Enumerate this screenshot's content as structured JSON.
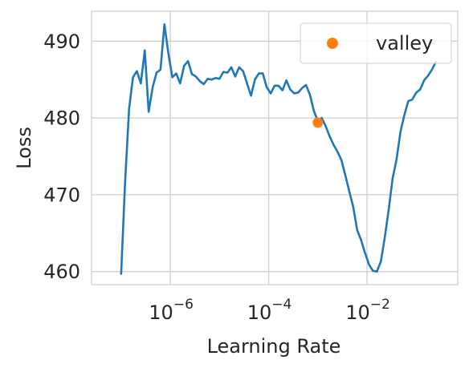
{
  "chart_data": {
    "type": "line",
    "xlabel": "Learning Rate",
    "ylabel": "Loss",
    "x_scale": "log",
    "xlim": [
      2.5e-08,
      0.7
    ],
    "ylim": [
      458.3,
      493.9
    ],
    "x_ticks": [
      {
        "value": 1e-06,
        "base": "10",
        "exp": "−6"
      },
      {
        "value": 0.0001,
        "base": "10",
        "exp": "−4"
      },
      {
        "value": 0.01,
        "base": "10",
        "exp": "−2"
      }
    ],
    "y_ticks": [
      {
        "value": 460,
        "label": "460"
      },
      {
        "value": 470,
        "label": "470"
      },
      {
        "value": 480,
        "label": "480"
      },
      {
        "value": 490,
        "label": "490"
      }
    ],
    "grid": true,
    "legend_position": "top-right",
    "legend": [
      {
        "label": "valley",
        "color": "#ff7f0e"
      }
    ],
    "colors": {
      "line": "#1f77b4",
      "valley": "#ff7f0e",
      "grid": "#cccccc",
      "frame": "#cccccc"
    },
    "series": [
      {
        "points": [
          [
            1e-07,
            459.7
          ],
          [
            1.2e-07,
            471.5
          ],
          [
            1.45e-07,
            481.2
          ],
          [
            1.74e-07,
            485.3
          ],
          [
            2.09e-07,
            486.1
          ],
          [
            2.51e-07,
            484.5
          ],
          [
            3.02e-07,
            488.8
          ],
          [
            3.63e-07,
            480.8
          ],
          [
            4.37e-07,
            484.0
          ],
          [
            5.25e-07,
            485.9
          ],
          [
            6.31e-07,
            486.3
          ],
          [
            7.59e-07,
            492.2
          ],
          [
            9.12e-07,
            488.4
          ],
          [
            1.1e-06,
            485.3
          ],
          [
            1.32e-06,
            485.8
          ],
          [
            1.58e-06,
            484.5
          ],
          [
            1.91e-06,
            486.8
          ],
          [
            2.29e-06,
            487.4
          ],
          [
            2.75e-06,
            485.7
          ],
          [
            3.31e-06,
            485.4
          ],
          [
            3.98e-06,
            484.8
          ],
          [
            4.79e-06,
            484.4
          ],
          [
            5.75e-06,
            485.1
          ],
          [
            6.92e-06,
            485.0
          ],
          [
            8.32e-06,
            485.2
          ],
          [
            1e-05,
            485.1
          ],
          [
            1.2e-05,
            486.0
          ],
          [
            1.45e-05,
            485.9
          ],
          [
            1.74e-05,
            486.6
          ],
          [
            2.09e-05,
            485.4
          ],
          [
            2.51e-05,
            486.6
          ],
          [
            3.02e-05,
            486.1
          ],
          [
            3.63e-05,
            484.5
          ],
          [
            4.37e-05,
            482.9
          ],
          [
            5.25e-05,
            485.0
          ],
          [
            6.31e-05,
            485.8
          ],
          [
            7.59e-05,
            485.8
          ],
          [
            9.12e-05,
            484.0
          ],
          [
            0.00011,
            483.2
          ],
          [
            0.000132,
            484.2
          ],
          [
            0.000158,
            484.2
          ],
          [
            0.000191,
            483.6
          ],
          [
            0.000229,
            484.9
          ],
          [
            0.000275,
            483.7
          ],
          [
            0.000331,
            483.2
          ],
          [
            0.000398,
            483.3
          ],
          [
            0.000479,
            483.9
          ],
          [
            0.000575,
            484.3
          ],
          [
            0.000692,
            483.0
          ],
          [
            0.000832,
            480.9
          ],
          [
            0.001,
            479.6
          ],
          [
            0.0012,
            480.0
          ],
          [
            0.00145,
            478.9
          ],
          [
            0.00174,
            477.6
          ],
          [
            0.00209,
            476.5
          ],
          [
            0.00251,
            475.6
          ],
          [
            0.00302,
            474.5
          ],
          [
            0.00363,
            472.5
          ],
          [
            0.00437,
            470.4
          ],
          [
            0.00525,
            468.4
          ],
          [
            0.00631,
            465.4
          ],
          [
            0.00759,
            464.1
          ],
          [
            0.00912,
            462.4
          ],
          [
            0.011,
            460.9
          ],
          [
            0.0132,
            460.1
          ],
          [
            0.0158,
            460.0
          ],
          [
            0.0191,
            461.3
          ],
          [
            0.0229,
            464.4
          ],
          [
            0.0275,
            468.0
          ],
          [
            0.0331,
            472.1
          ],
          [
            0.0398,
            474.6
          ],
          [
            0.0479,
            478.2
          ],
          [
            0.0575,
            480.4
          ],
          [
            0.0692,
            482.2
          ],
          [
            0.0832,
            482.4
          ],
          [
            0.1,
            483.3
          ],
          [
            0.12,
            483.7
          ],
          [
            0.145,
            484.9
          ],
          [
            0.174,
            485.5
          ],
          [
            0.209,
            486.3
          ],
          [
            0.251,
            487.3
          ]
        ]
      }
    ],
    "markers": [
      {
        "name": "valley",
        "x": 0.001,
        "y": 479.4,
        "color": "#ff7f0e"
      }
    ]
  }
}
